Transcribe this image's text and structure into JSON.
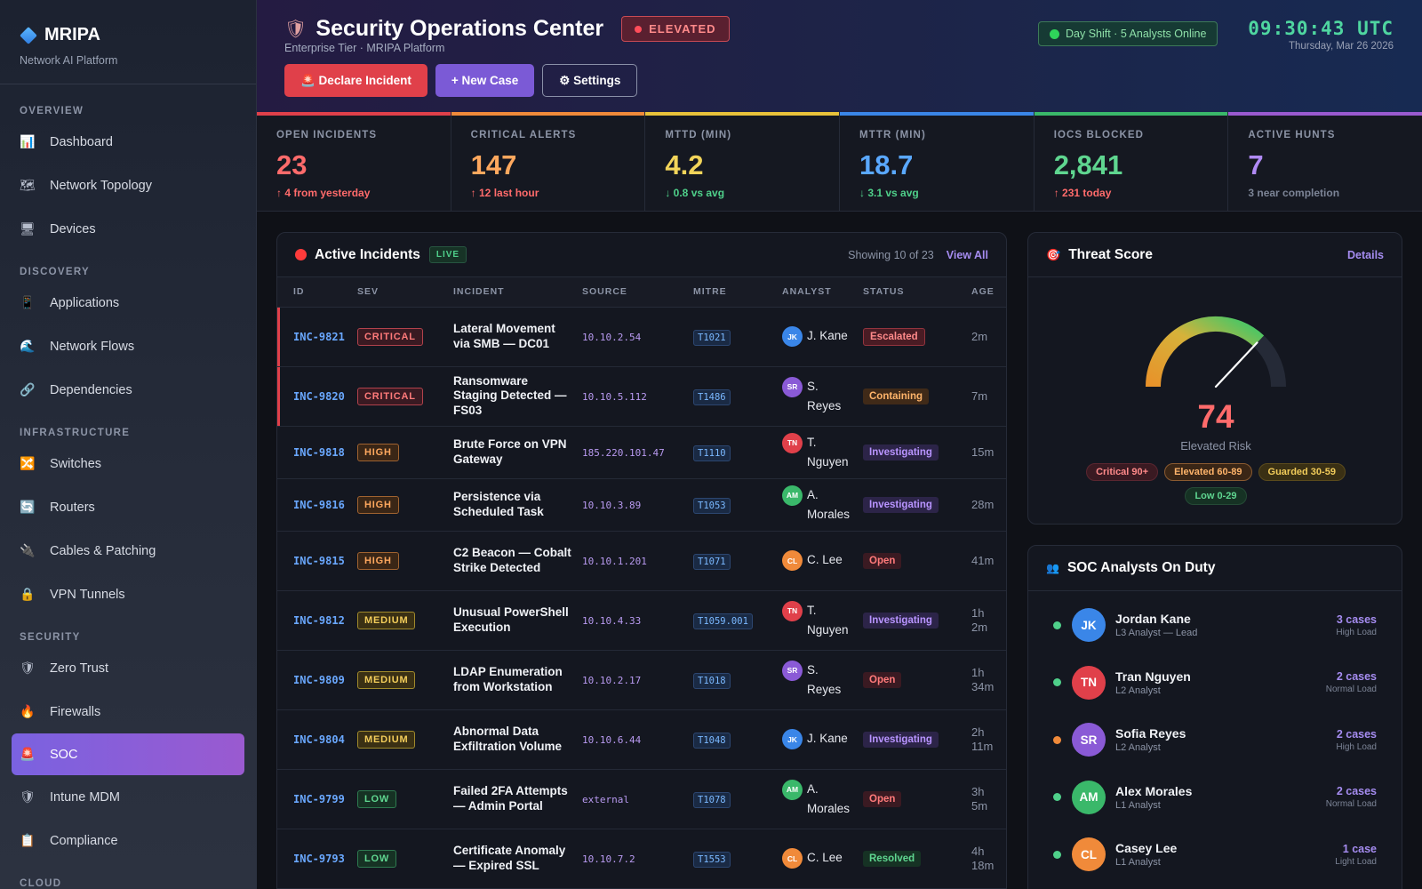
{
  "sidebar": {
    "brand": "MRIPA",
    "subtitle": "Network AI Platform",
    "sections": [
      {
        "title": "OVERVIEW",
        "items": [
          {
            "label": "Dashboard",
            "icon": "📊",
            "name": "dashboard"
          },
          {
            "label": "Network Topology",
            "icon": "🗺",
            "name": "network-topology"
          },
          {
            "label": "Devices",
            "icon": "🖥",
            "name": "devices"
          }
        ]
      },
      {
        "title": "DISCOVERY",
        "items": [
          {
            "label": "Applications",
            "icon": "📱",
            "name": "applications"
          },
          {
            "label": "Network Flows",
            "icon": "🌊",
            "name": "network-flows"
          },
          {
            "label": "Dependencies",
            "icon": "🔗",
            "name": "dependencies"
          }
        ]
      },
      {
        "title": "INFRASTRUCTURE",
        "items": [
          {
            "label": "Switches",
            "icon": "🔀",
            "name": "switches"
          },
          {
            "label": "Routers",
            "icon": "🔄",
            "name": "routers"
          },
          {
            "label": "Cables & Patching",
            "icon": "🔌",
            "name": "cables-patching"
          },
          {
            "label": "VPN Tunnels",
            "icon": "🔒",
            "name": "vpn-tunnels"
          }
        ]
      },
      {
        "title": "SECURITY",
        "items": [
          {
            "label": "Zero Trust",
            "icon": "🛡",
            "name": "zero-trust"
          },
          {
            "label": "Firewalls",
            "icon": "🔥",
            "name": "firewalls"
          },
          {
            "label": "SOC",
            "icon": "🚨",
            "name": "soc",
            "active": true
          },
          {
            "label": "Intune MDM",
            "icon": "🛡",
            "name": "intune-mdm"
          },
          {
            "label": "Compliance",
            "icon": "📋",
            "name": "compliance"
          }
        ]
      },
      {
        "title": "CLOUD",
        "items": []
      }
    ]
  },
  "header": {
    "title": "Security Operations Center",
    "threat_level": "ELEVATED",
    "subtitle": "Enterprise Tier · MRIPA Platform",
    "buttons": {
      "declare": "🚨 Declare Incident",
      "new_case": "+ New Case",
      "settings": "⚙ Settings"
    },
    "shift": "Day Shift · 5 Analysts Online",
    "time": "09:30:43 UTC",
    "date": "Thursday, Mar 26 2026"
  },
  "kpis": [
    {
      "label": "OPEN INCIDENTS",
      "value": "23",
      "delta": "↑ 4 from yesterday",
      "color": "#ff6b6b",
      "delta_color": "#ff6b6b",
      "bar": "#e0404a",
      "name": "open-incidents"
    },
    {
      "label": "CRITICAL ALERTS",
      "value": "147",
      "delta": "↑ 12 last hour",
      "color": "#ffa85e",
      "delta_color": "#ff6b6b",
      "bar": "#f08a3a",
      "name": "critical-alerts"
    },
    {
      "label": "MTTD (MIN)",
      "value": "4.2",
      "delta": "↓ 0.8 vs avg",
      "color": "#f2d45a",
      "delta_color": "#4fd08a",
      "bar": "#e8c23a",
      "name": "mttd"
    },
    {
      "label": "MTTR (MIN)",
      "value": "18.7",
      "delta": "↓ 3.1 vs avg",
      "color": "#5aa8ff",
      "delta_color": "#4fd08a",
      "bar": "#3a86e8",
      "name": "mttr"
    },
    {
      "label": "IOCS BLOCKED",
      "value": "2,841",
      "delta": "↑ 231 today",
      "color": "#5fd690",
      "delta_color": "#ff6b6b",
      "bar": "#3ab86a",
      "name": "iocs-blocked"
    },
    {
      "label": "ACTIVE HUNTS",
      "value": "7",
      "delta": "3 near completion",
      "color": "#b08af5",
      "delta_color": "#7c8496",
      "bar": "#9a5ad0",
      "name": "active-hunts"
    }
  ],
  "incidents": {
    "title": "Active Incidents",
    "live": "LIVE",
    "showing": "Showing 10 of 23",
    "view_all": "View All",
    "columns": [
      "ID",
      "SEV",
      "INCIDENT",
      "SOURCE",
      "MITRE",
      "ANALYST",
      "STATUS",
      "AGE"
    ],
    "rows": [
      {
        "id": "INC-9821",
        "sev": "CRITICAL",
        "title": "Lateral Movement via SMB — DC01",
        "source": "10.10.2.54",
        "mitre": "T1021",
        "analyst": "J. Kane",
        "initials": "JK",
        "av_color": "#3a86e8",
        "status": "Escalated",
        "age": "2m"
      },
      {
        "id": "INC-9820",
        "sev": "CRITICAL",
        "title": "Ransomware Staging Detected — FS03",
        "source": "10.10.5.112",
        "mitre": "T1486",
        "analyst": "S. Reyes",
        "initials": "SR",
        "av_color": "#8a5ad6",
        "status": "Containing",
        "age": "7m"
      },
      {
        "id": "INC-9818",
        "sev": "HIGH",
        "title": "Brute Force on VPN Gateway",
        "source": "185.220.101.47",
        "mitre": "T1110",
        "analyst": "T. Nguyen",
        "initials": "TN",
        "av_color": "#e0404a",
        "status": "Investigating",
        "age": "15m"
      },
      {
        "id": "INC-9816",
        "sev": "HIGH",
        "title": "Persistence via Scheduled Task",
        "source": "10.10.3.89",
        "mitre": "T1053",
        "analyst": "A. Morales",
        "initials": "AM",
        "av_color": "#3ab86a",
        "status": "Investigating",
        "age": "28m"
      },
      {
        "id": "INC-9815",
        "sev": "HIGH",
        "title": "C2 Beacon — Cobalt Strike Detected",
        "source": "10.10.1.201",
        "mitre": "T1071",
        "analyst": "C. Lee",
        "initials": "CL",
        "av_color": "#f08a3a",
        "status": "Open",
        "age": "41m"
      },
      {
        "id": "INC-9812",
        "sev": "MEDIUM",
        "title": "Unusual PowerShell Execution",
        "source": "10.10.4.33",
        "mitre": "T1059.001",
        "analyst": "T. Nguyen",
        "initials": "TN",
        "av_color": "#e0404a",
        "status": "Investigating",
        "age": "1h 2m"
      },
      {
        "id": "INC-9809",
        "sev": "MEDIUM",
        "title": "LDAP Enumeration from Workstation",
        "source": "10.10.2.17",
        "mitre": "T1018",
        "analyst": "S. Reyes",
        "initials": "SR",
        "av_color": "#8a5ad6",
        "status": "Open",
        "age": "1h 34m"
      },
      {
        "id": "INC-9804",
        "sev": "MEDIUM",
        "title": "Abnormal Data Exfiltration Volume",
        "source": "10.10.6.44",
        "mitre": "T1048",
        "analyst": "J. Kane",
        "initials": "JK",
        "av_color": "#3a86e8",
        "status": "Investigating",
        "age": "2h 11m"
      },
      {
        "id": "INC-9799",
        "sev": "LOW",
        "title": "Failed 2FA Attempts — Admin Portal",
        "source": "external",
        "mitre": "T1078",
        "analyst": "A. Morales",
        "initials": "AM",
        "av_color": "#3ab86a",
        "status": "Open",
        "age": "3h 5m"
      },
      {
        "id": "INC-9793",
        "sev": "LOW",
        "title": "Certificate Anomaly — Expired SSL",
        "source": "10.10.7.2",
        "mitre": "T1553",
        "analyst": "C. Lee",
        "initials": "CL",
        "av_color": "#f08a3a",
        "status": "Resolved",
        "age": "4h 18m"
      }
    ]
  },
  "threat": {
    "title": "Threat Score",
    "details": "Details",
    "score": "74",
    "score_value": 74,
    "label": "Elevated Risk",
    "legend": [
      {
        "label": "Critical 90+",
        "cls": "lg-crit"
      },
      {
        "label": "Elevated 60-89",
        "cls": "lg-elev"
      },
      {
        "label": "Guarded 30-59",
        "cls": "lg-guard"
      },
      {
        "label": "Low 0-29",
        "cls": "lg-low"
      }
    ]
  },
  "analysts": {
    "title": "SOC Analysts On Duty",
    "list": [
      {
        "name": "Jordan Kane",
        "role": "L3 Analyst — Lead",
        "initials": "JK",
        "color": "#3a86e8",
        "cases": "3 cases",
        "load": "High Load",
        "status_color": "#4fd08a"
      },
      {
        "name": "Tran Nguyen",
        "role": "L2 Analyst",
        "initials": "TN",
        "color": "#e0404a",
        "cases": "2 cases",
        "load": "Normal Load",
        "status_color": "#4fd08a"
      },
      {
        "name": "Sofia Reyes",
        "role": "L2 Analyst",
        "initials": "SR",
        "color": "#8a5ad6",
        "cases": "2 cases",
        "load": "High Load",
        "status_color": "#f08a3a"
      },
      {
        "name": "Alex Morales",
        "role": "L1 Analyst",
        "initials": "AM",
        "color": "#3ab86a",
        "cases": "2 cases",
        "load": "Normal Load",
        "status_color": "#4fd08a"
      },
      {
        "name": "Casey Lee",
        "role": "L1 Analyst",
        "initials": "CL",
        "color": "#f08a3a",
        "cases": "1 case",
        "load": "Light Load",
        "status_color": "#4fd08a"
      }
    ]
  }
}
